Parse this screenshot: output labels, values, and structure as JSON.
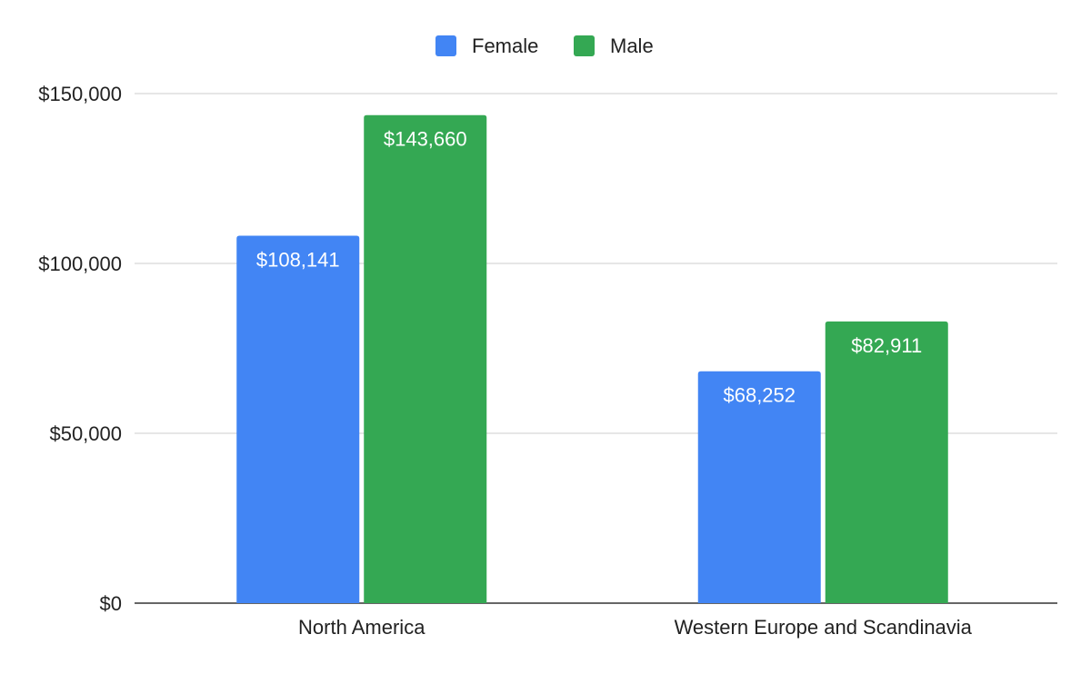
{
  "chart_data": {
    "type": "bar",
    "title": "",
    "xlabel": "",
    "ylabel": "",
    "categories": [
      "North America",
      "Western Europe and Scandinavia"
    ],
    "series": [
      {
        "name": "Female",
        "color": "#4285f4",
        "values": [
          108141,
          68252
        ],
        "labels": [
          "$108,141",
          "$68,252"
        ]
      },
      {
        "name": "Male",
        "color": "#34a853",
        "values": [
          143660,
          82911
        ],
        "labels": [
          "$143,660",
          "$82,911"
        ]
      }
    ],
    "ylim": [
      0,
      150000
    ],
    "yticks": [
      0,
      50000,
      100000,
      150000
    ],
    "ytick_labels": [
      "$0",
      "$50,000",
      "$100,000",
      "$150,000"
    ],
    "grid": true,
    "legend_position": "top-center"
  }
}
